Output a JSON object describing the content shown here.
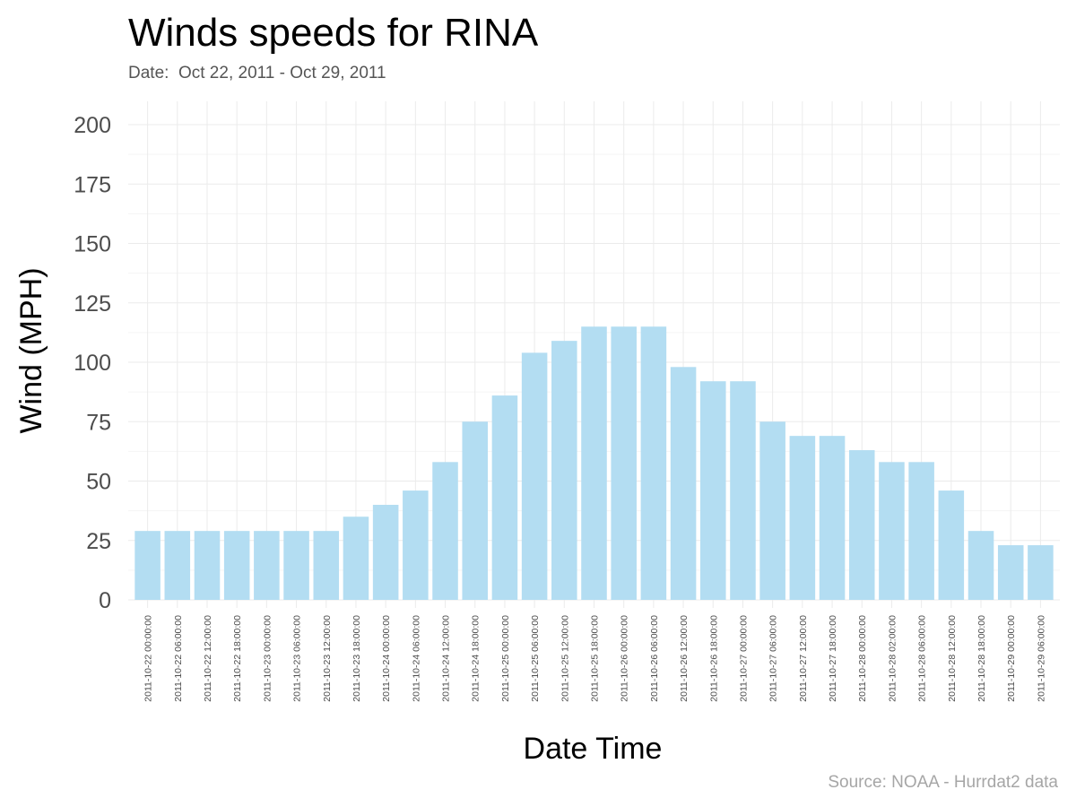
{
  "chart_data": {
    "type": "bar",
    "title": "Winds speeds for RINA",
    "subtitle": "Date:  Oct 22, 2011 - Oct 29, 2011",
    "caption": "Source: NOAA - Hurrdat2 data",
    "xlabel": "Date Time",
    "ylabel": "Wind (MPH)",
    "ylim": [
      0,
      200
    ],
    "yticks": [
      0,
      25,
      50,
      75,
      100,
      125,
      150,
      175,
      200
    ],
    "grid": true,
    "bar_color": "#b3ddf2",
    "categories": [
      "2011-10-22 00:00:00",
      "2011-10-22 06:00:00",
      "2011-10-22 12:00:00",
      "2011-10-22 18:00:00",
      "2011-10-23 00:00:00",
      "2011-10-23 06:00:00",
      "2011-10-23 12:00:00",
      "2011-10-23 18:00:00",
      "2011-10-24 00:00:00",
      "2011-10-24 06:00:00",
      "2011-10-24 12:00:00",
      "2011-10-24 18:00:00",
      "2011-10-25 00:00:00",
      "2011-10-25 06:00:00",
      "2011-10-25 12:00:00",
      "2011-10-25 18:00:00",
      "2011-10-26 00:00:00",
      "2011-10-26 06:00:00",
      "2011-10-26 12:00:00",
      "2011-10-26 18:00:00",
      "2011-10-27 00:00:00",
      "2011-10-27 06:00:00",
      "2011-10-27 12:00:00",
      "2011-10-27 18:00:00",
      "2011-10-28 00:00:00",
      "2011-10-28 02:00:00",
      "2011-10-28 06:00:00",
      "2011-10-28 12:00:00",
      "2011-10-28 18:00:00",
      "2011-10-29 00:00:00",
      "2011-10-29 06:00:00"
    ],
    "values": [
      29,
      29,
      29,
      29,
      29,
      29,
      29,
      35,
      40,
      46,
      58,
      75,
      86,
      104,
      109,
      115,
      115,
      115,
      98,
      92,
      92,
      75,
      69,
      69,
      63,
      58,
      58,
      46,
      29,
      23,
      23
    ]
  }
}
